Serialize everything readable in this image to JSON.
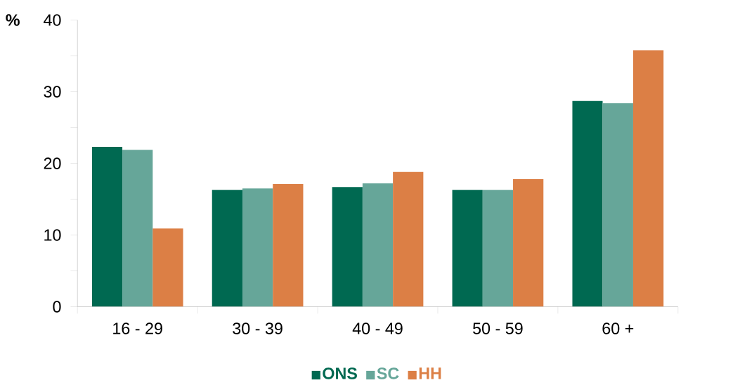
{
  "chart_data": {
    "type": "bar",
    "ylabel": "%",
    "categories": [
      "16 - 29",
      "30 - 39",
      "40 - 49",
      "50 - 59",
      "60 +"
    ],
    "series": [
      {
        "name": "ONS",
        "color": "#006951",
        "values": [
          22.3,
          16.3,
          16.7,
          16.3,
          28.7
        ]
      },
      {
        "name": "SC",
        "color": "#66a699",
        "values": [
          21.9,
          16.5,
          17.2,
          16.3,
          28.4
        ]
      },
      {
        "name": "HH",
        "color": "#dc7f45",
        "values": [
          10.9,
          17.1,
          18.8,
          17.8,
          35.8
        ]
      }
    ],
    "ylim": [
      0,
      40
    ],
    "yticks": [
      0,
      10,
      20,
      30,
      40
    ],
    "grid": false,
    "legend": "bottom"
  }
}
